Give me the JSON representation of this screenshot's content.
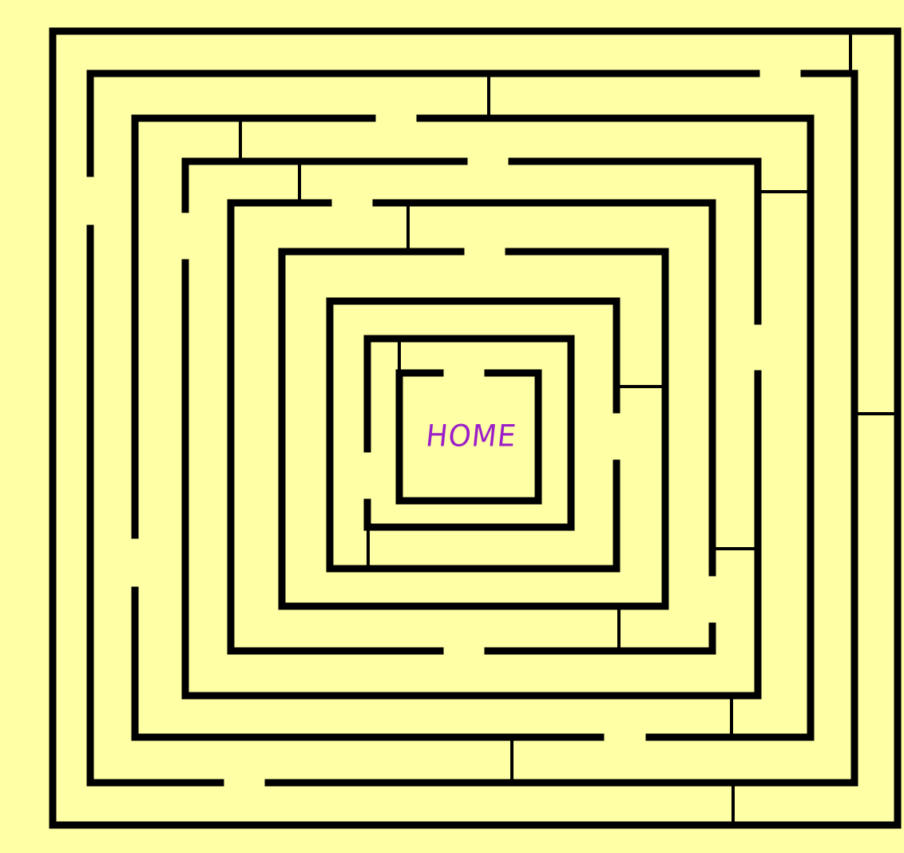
{
  "maze": {
    "goal_label": "HOME",
    "label_color": "#9b1fc9",
    "wall_color": "#000000",
    "background_color": "#ffffa6"
  }
}
